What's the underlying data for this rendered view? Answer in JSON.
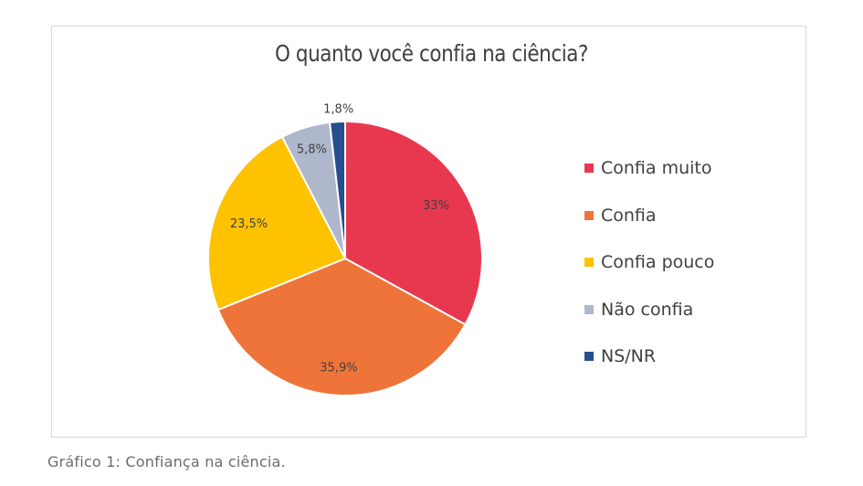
{
  "chart_data": {
    "type": "pie",
    "title": "O quanto você confia na ciência?",
    "slices": [
      {
        "label": "Confia muito",
        "value": 33,
        "display": "33%",
        "color": "#e8384f"
      },
      {
        "label": "Confia",
        "value": 35.9,
        "display": "35,9%",
        "color": "#ee7439"
      },
      {
        "label": "Confia pouco",
        "value": 23.5,
        "display": "23,5%",
        "color": "#fec200"
      },
      {
        "label": "Não confia",
        "value": 5.8,
        "display": "5,8%",
        "color": "#aeb7cc"
      },
      {
        "label": "NS/NR",
        "value": 1.8,
        "display": "1,8%",
        "color": "#264e8f"
      }
    ],
    "legend_position": "right"
  },
  "caption": "Gráfico 1: Confiança na ciência."
}
